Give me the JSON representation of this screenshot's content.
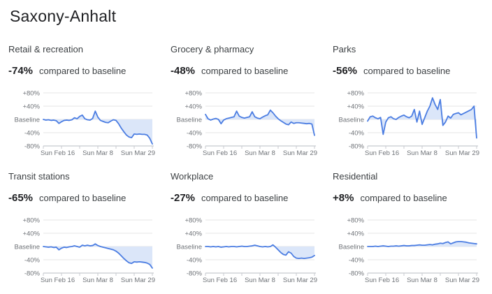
{
  "page": {
    "title": "Saxony-Anhalt"
  },
  "colors": {
    "line": "#4b7de2",
    "area_fill": "#dbe6f9",
    "grid": "#e4e4e4",
    "axis": "#c7cacf",
    "tick_label": "#6f7378",
    "heading": "#202124",
    "chart_title": "#3c4043"
  },
  "axes": {
    "y_ticks": [
      {
        "value": 80,
        "label": "+80%"
      },
      {
        "value": 40,
        "label": "+40%"
      },
      {
        "value": 0,
        "label": "Baseline"
      },
      {
        "value": -40,
        "label": "-40%"
      },
      {
        "value": -80,
        "label": "-80%"
      }
    ],
    "ylim": [
      -80,
      80
    ],
    "x_tick_labels": [
      "Sun Feb 16",
      "Sun Mar 8",
      "Sun Mar 29"
    ],
    "weekly_tick_count": 7,
    "grid": true,
    "legend": "none"
  },
  "chart_data": [
    {
      "type": "line",
      "title": "Retail & recreation",
      "delta": "-74%",
      "caption": "compared to baseline",
      "x_start": "Sun Feb 16",
      "x_end": "Sun Mar 29",
      "values": [
        0,
        -2,
        -1,
        -3,
        -2,
        -4,
        -12,
        -7,
        -3,
        -2,
        -3,
        -1,
        5,
        2,
        9,
        13,
        2,
        -1,
        -2,
        3,
        25,
        7,
        -3,
        -6,
        -9,
        -10,
        -5,
        -1,
        -3,
        -13,
        -26,
        -37,
        -47,
        -53,
        -55,
        -44,
        -45,
        -44,
        -45,
        -45,
        -47,
        -57,
        -74
      ]
    },
    {
      "type": "line",
      "title": "Grocery & pharmacy",
      "delta": "-48%",
      "caption": "compared to baseline",
      "x_start": "Sun Feb 16",
      "x_end": "Sun Mar 29",
      "values": [
        15,
        2,
        -2,
        1,
        3,
        0,
        -13,
        -2,
        2,
        4,
        6,
        8,
        25,
        10,
        6,
        4,
        6,
        8,
        23,
        8,
        4,
        2,
        7,
        11,
        14,
        28,
        20,
        10,
        2,
        -4,
        -9,
        -14,
        -16,
        -8,
        -12,
        -10,
        -10,
        -11,
        -12,
        -13,
        -12,
        -14,
        -48
      ]
    },
    {
      "type": "line",
      "title": "Parks",
      "delta": "-56%",
      "caption": "compared to baseline",
      "x_start": "Sun Feb 16",
      "x_end": "Sun Mar 29",
      "values": [
        -5,
        8,
        10,
        5,
        2,
        6,
        -45,
        -8,
        5,
        8,
        2,
        0,
        6,
        10,
        13,
        8,
        5,
        10,
        30,
        -8,
        25,
        -15,
        5,
        25,
        40,
        65,
        45,
        30,
        60,
        -18,
        -8,
        10,
        4,
        15,
        18,
        20,
        14,
        18,
        22,
        26,
        30,
        40,
        -56
      ]
    },
    {
      "type": "line",
      "title": "Transit stations",
      "delta": "-65%",
      "caption": "compared to baseline",
      "x_start": "Sun Feb 16",
      "x_end": "Sun Mar 29",
      "values": [
        0,
        -1,
        -2,
        -1,
        -3,
        -2,
        -10,
        -5,
        -2,
        -3,
        -1,
        0,
        2,
        0,
        -2,
        4,
        2,
        4,
        2,
        3,
        8,
        3,
        0,
        -2,
        -4,
        -6,
        -8,
        -10,
        -14,
        -20,
        -28,
        -36,
        -43,
        -49,
        -51,
        -46,
        -47,
        -46,
        -47,
        -48,
        -50,
        -54,
        -65
      ]
    },
    {
      "type": "line",
      "title": "Workplace",
      "delta": "-27%",
      "caption": "compared to baseline",
      "x_start": "Sun Feb 16",
      "x_end": "Sun Mar 29",
      "values": [
        0,
        0,
        -1,
        0,
        -1,
        0,
        -2,
        -1,
        0,
        -1,
        0,
        0,
        -1,
        0,
        1,
        0,
        0,
        1,
        2,
        4,
        2,
        0,
        -1,
        0,
        -1,
        0,
        5,
        -2,
        -10,
        -18,
        -24,
        -26,
        -16,
        -20,
        -30,
        -35,
        -36,
        -35,
        -36,
        -35,
        -34,
        -32,
        -27
      ]
    },
    {
      "type": "line",
      "title": "Residential",
      "delta": "+8%",
      "caption": "compared to baseline",
      "x_start": "Sun Feb 16",
      "x_end": "Sun Mar 29",
      "values": [
        0,
        0,
        0,
        1,
        0,
        1,
        2,
        1,
        0,
        1,
        1,
        2,
        1,
        2,
        3,
        2,
        2,
        3,
        3,
        4,
        5,
        4,
        4,
        5,
        6,
        5,
        7,
        8,
        10,
        9,
        12,
        14,
        8,
        11,
        14,
        15,
        15,
        14,
        13,
        11,
        10,
        9,
        8
      ]
    }
  ]
}
